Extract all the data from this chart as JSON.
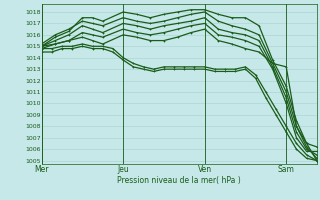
{
  "xlabel": "Pression niveau de la mer( hPa )",
  "background_color": "#c6e8e8",
  "grid_color": "#a8d0d0",
  "line_color": "#1a5c1a",
  "ylim": [
    1004.7,
    1018.7
  ],
  "yticks": [
    1005,
    1006,
    1007,
    1008,
    1009,
    1010,
    1011,
    1012,
    1013,
    1014,
    1015,
    1016,
    1017,
    1018
  ],
  "day_labels": [
    "Mer",
    "Jeu",
    "Ven",
    "Sam"
  ],
  "day_positions": [
    0,
    48,
    96,
    144
  ],
  "xlim": [
    0,
    162
  ],
  "series": [
    {
      "x": [
        0,
        8,
        16,
        24,
        30,
        36,
        48,
        56,
        64,
        72,
        80,
        88,
        96,
        104,
        112,
        120,
        128,
        136,
        144,
        150,
        156,
        162
      ],
      "y": [
        1015.0,
        1015.8,
        1016.3,
        1017.5,
        1017.5,
        1017.2,
        1018.0,
        1017.8,
        1017.5,
        1017.8,
        1018.0,
        1018.2,
        1018.2,
        1017.8,
        1017.5,
        1017.5,
        1016.8,
        1013.8,
        1011.5,
        1008.5,
        1006.5,
        1005.0
      ],
      "lw": 0.9
    },
    {
      "x": [
        0,
        8,
        16,
        24,
        30,
        36,
        48,
        56,
        64,
        72,
        80,
        88,
        96,
        104,
        112,
        120,
        128,
        136,
        144,
        150,
        156,
        162
      ],
      "y": [
        1015.2,
        1016.0,
        1016.5,
        1017.2,
        1017.0,
        1016.8,
        1017.5,
        1017.2,
        1017.0,
        1017.2,
        1017.5,
        1017.8,
        1018.0,
        1017.2,
        1016.8,
        1016.5,
        1016.0,
        1013.5,
        1011.0,
        1008.0,
        1006.2,
        1005.2
      ],
      "lw": 0.9
    },
    {
      "x": [
        0,
        8,
        16,
        24,
        30,
        36,
        48,
        56,
        64,
        72,
        80,
        88,
        96,
        104,
        112,
        120,
        128,
        136,
        144,
        150,
        156,
        162
      ],
      "y": [
        1015.0,
        1015.5,
        1016.0,
        1016.8,
        1016.5,
        1016.2,
        1017.0,
        1016.8,
        1016.5,
        1016.8,
        1017.0,
        1017.2,
        1017.5,
        1016.5,
        1016.2,
        1016.0,
        1015.5,
        1013.2,
        1010.5,
        1007.5,
        1006.0,
        1005.5
      ],
      "lw": 0.9
    },
    {
      "x": [
        0,
        8,
        16,
        24,
        30,
        36,
        48,
        56,
        64,
        72,
        80,
        88,
        96,
        104,
        112,
        120,
        128,
        136,
        144,
        150,
        156,
        162
      ],
      "y": [
        1014.8,
        1015.2,
        1015.5,
        1016.2,
        1016.0,
        1015.8,
        1016.5,
        1016.2,
        1016.0,
        1016.2,
        1016.5,
        1016.8,
        1017.0,
        1016.0,
        1015.8,
        1015.5,
        1015.0,
        1013.0,
        1010.0,
        1007.0,
        1005.8,
        1005.8
      ],
      "lw": 0.9
    },
    {
      "x": [
        0,
        8,
        16,
        24,
        30,
        36,
        48,
        56,
        64,
        72,
        80,
        88,
        96,
        104,
        112,
        120,
        128,
        136,
        144,
        150,
        156,
        162
      ],
      "y": [
        1015.0,
        1015.2,
        1015.5,
        1015.8,
        1015.5,
        1015.2,
        1016.0,
        1015.8,
        1015.5,
        1015.5,
        1015.8,
        1016.2,
        1016.5,
        1015.5,
        1015.2,
        1014.8,
        1014.5,
        1013.5,
        1013.2,
        1008.0,
        1006.5,
        1006.2
      ],
      "lw": 0.9
    },
    {
      "x": [
        0,
        6,
        12,
        18,
        24,
        30,
        36,
        42,
        48,
        54,
        60,
        66,
        72,
        78,
        84,
        90,
        96,
        102,
        108,
        114,
        120,
        126,
        132,
        138,
        144,
        150,
        156,
        162
      ],
      "y": [
        1014.8,
        1014.8,
        1015.0,
        1015.0,
        1015.2,
        1015.0,
        1015.0,
        1014.8,
        1014.0,
        1013.5,
        1013.2,
        1013.0,
        1013.2,
        1013.2,
        1013.2,
        1013.2,
        1013.2,
        1013.0,
        1013.0,
        1013.0,
        1013.2,
        1012.5,
        1011.0,
        1009.5,
        1008.0,
        1006.5,
        1005.5,
        1005.0
      ],
      "lw": 0.9
    },
    {
      "x": [
        0,
        6,
        12,
        18,
        24,
        30,
        36,
        42,
        48,
        54,
        60,
        66,
        72,
        78,
        84,
        90,
        96,
        102,
        108,
        114,
        120,
        126,
        132,
        138,
        144,
        150,
        156,
        162
      ],
      "y": [
        1014.5,
        1014.5,
        1014.8,
        1014.8,
        1015.0,
        1014.8,
        1014.8,
        1014.5,
        1013.8,
        1013.2,
        1013.0,
        1012.8,
        1013.0,
        1013.0,
        1013.0,
        1013.0,
        1013.0,
        1012.8,
        1012.8,
        1012.8,
        1013.0,
        1012.2,
        1010.5,
        1009.0,
        1007.5,
        1006.0,
        1005.2,
        1005.0
      ],
      "lw": 0.9
    }
  ]
}
